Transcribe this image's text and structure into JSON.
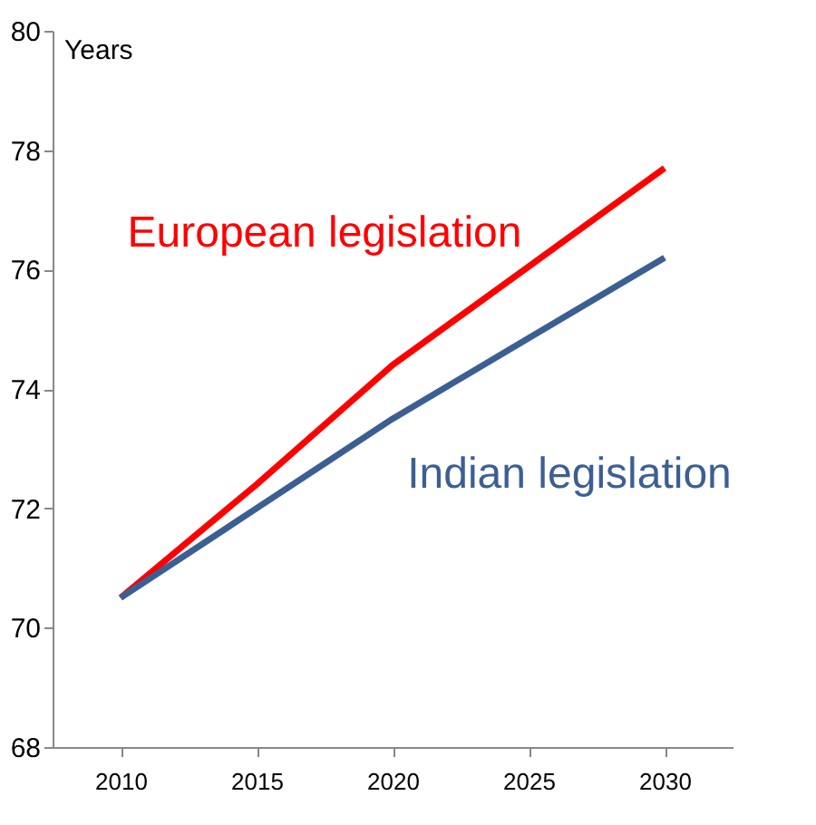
{
  "chart_data": {
    "type": "line",
    "ylabel": "Years",
    "categories": [
      "2010",
      "2015",
      "2020",
      "2025",
      "2030"
    ],
    "series": [
      {
        "name": "European legislation",
        "color": "#ff0000",
        "values": [
          70.5,
          72.4,
          74.4,
          76.05,
          77.7
        ]
      },
      {
        "name": "Indian legislation",
        "color": "#3c5f93",
        "values": [
          70.5,
          72.0,
          73.5,
          74.85,
          76.2
        ]
      }
    ],
    "ylim": [
      68,
      80
    ],
    "yticks": [
      68,
      70,
      72,
      74,
      76,
      78,
      80
    ],
    "grid": false,
    "marker": "none",
    "line_style": "solid"
  }
}
